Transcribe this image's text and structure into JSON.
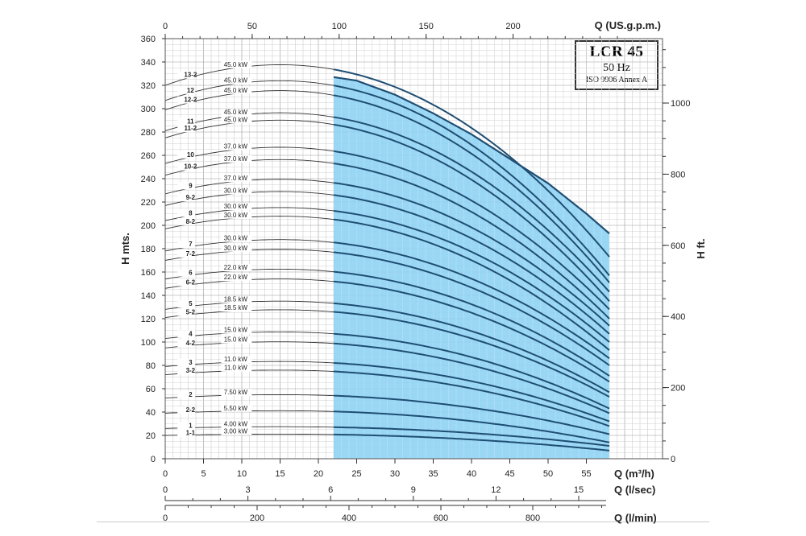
{
  "title_box": {
    "model": "LCR 45",
    "frequency": "50 Hz",
    "standard": "ISO 9906 Annex A"
  },
  "chart_data": {
    "type": "line",
    "title": "LCR 45",
    "ylabel": "H mts.",
    "ylabel_right": "H ft.",
    "xlabel": "Q (m³/h)",
    "xlabel_top": "Q (US.g.p.m.)",
    "xlabel_lps": "Q (l/sec)",
    "xlabel_lpm": "Q (l/min)",
    "xlim": [
      0,
      58
    ],
    "ylim": [
      0,
      360
    ],
    "grid": true,
    "x_ticks": [
      0,
      5,
      10,
      15,
      20,
      25,
      30,
      35,
      40,
      45,
      50,
      55
    ],
    "y_ticks": [
      0,
      20,
      40,
      60,
      80,
      100,
      120,
      140,
      160,
      180,
      200,
      220,
      240,
      260,
      280,
      300,
      320,
      340,
      360
    ],
    "gpm_ticks": [
      0,
      50,
      100,
      150,
      200
    ],
    "lps_ticks": [
      0,
      3,
      6,
      9,
      12,
      15
    ],
    "lpm_ticks": [
      0,
      200,
      400,
      600,
      800
    ],
    "ft_ticks": [
      0,
      200,
      400,
      600,
      800,
      1000
    ],
    "operating_range_m3h": [
      22,
      58
    ],
    "operating_color": "#8fd3f4",
    "curve_color": "#1f4e73",
    "curve_shape": {
      "x_max_head": 15,
      "rise_fraction": 0.055,
      "falloff_exponent": 2.05
    },
    "series": [
      {
        "name": "1-1",
        "power": "3.00 kW",
        "h0": 20,
        "h58": 7
      },
      {
        "name": "1",
        "power": "4.00 kW",
        "h0": 26,
        "h58": 11
      },
      {
        "name": "2-2",
        "power": "5.50 kW",
        "h0": 39,
        "h58": 14
      },
      {
        "name": "2",
        "power": "7.50 kW",
        "h0": 52,
        "h58": 21
      },
      {
        "name": "3-2",
        "power": "11.0 kW",
        "h0": 72,
        "h58": 28
      },
      {
        "name": "3",
        "power": "11.0 kW",
        "h0": 79,
        "h58": 32
      },
      {
        "name": "4-2",
        "power": "15.0 kW",
        "h0": 95,
        "h58": 39
      },
      {
        "name": "4",
        "power": "15.0 kW",
        "h0": 103,
        "h58": 43
      },
      {
        "name": "5-2",
        "power": "18.5 kW",
        "h0": 121,
        "h58": 53
      },
      {
        "name": "5",
        "power": "18.5 kW",
        "h0": 128,
        "h58": 57
      },
      {
        "name": "6-2",
        "power": "22.0 kW",
        "h0": 146,
        "h58": 66
      },
      {
        "name": "6",
        "power": "22.0 kW",
        "h0": 154,
        "h58": 71
      },
      {
        "name": "7-2",
        "power": "30.0 kW",
        "h0": 170,
        "h58": 80
      },
      {
        "name": "7",
        "power": "30.0 kW",
        "h0": 178,
        "h58": 86
      },
      {
        "name": "8-2",
        "power": "30.0 kW",
        "h0": 197,
        "h58": 93
      },
      {
        "name": "8",
        "power": "30.0 kW",
        "h0": 204,
        "h58": 100
      },
      {
        "name": "9-2",
        "power": "30.0 kW",
        "h0": 217,
        "h58": 107
      },
      {
        "name": "9",
        "power": "37.0 kW",
        "h0": 227,
        "h58": 114
      },
      {
        "name": "10-2",
        "power": "37.0 kW",
        "h0": 243,
        "h58": 120
      },
      {
        "name": "10",
        "power": "37.0 kW",
        "h0": 253,
        "h58": 128
      },
      {
        "name": "11-2",
        "power": "45.0 kW",
        "h0": 275,
        "h58": 135
      },
      {
        "name": "11",
        "power": "45.0 kW",
        "h0": 281,
        "h58": 143
      },
      {
        "name": "12-2",
        "power": "45.0 kW",
        "h0": 299,
        "h58": 151
      },
      {
        "name": "12",
        "power": "45.0 kW",
        "h0": 307,
        "h58": 157
      },
      {
        "name": "13-2",
        "power": "45.0 kW",
        "h0": 320,
        "h58": 173
      }
    ],
    "envelope_m3h": [
      22,
      25,
      30,
      35,
      40,
      45,
      50,
      55,
      58
    ],
    "envelope_h": [
      327,
      324,
      312,
      296,
      278,
      257,
      236,
      210,
      193
    ]
  }
}
